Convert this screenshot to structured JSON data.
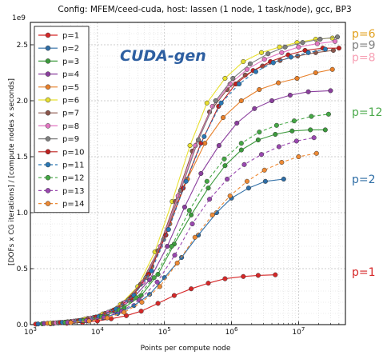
{
  "chart_data": {
    "type": "line",
    "title": "Config: MFEM/ceed-cuda, host: lassen (1 node, 1 task/node), gcc, BP3",
    "xlabel": "Points per compute node",
    "ylabel": "[DOFs x CG iterations] / [compute nodes x seconds]",
    "y_multiplier": "1e9",
    "xscale": "log",
    "xlim": [
      1000,
      50000000
    ],
    "ylim": [
      0,
      2.7
    ],
    "x_tick_labels": [
      "10^3",
      "10^4",
      "10^5",
      "10^6",
      "10^7"
    ],
    "x_ticks": [
      1000,
      10000,
      100000,
      1000000,
      10000000
    ],
    "y_ticks": [
      0.0,
      0.5,
      1.0,
      1.5,
      2.0,
      2.5
    ],
    "y_tick_labels": [
      "0.0",
      "0.5",
      "1.0",
      "1.5",
      "2.0",
      "2.5"
    ],
    "grid": true,
    "legend_position": "top-left",
    "annotation": "CUDA-gen",
    "annotation_color": "#2e5fa1",
    "series": [
      {
        "name": "p=1",
        "color": "#d62728",
        "dash": false,
        "x": [
          1200,
          2000,
          3500,
          6000,
          10000,
          16000,
          27000,
          45000,
          80000,
          140000,
          250000,
          450000,
          800000,
          1500000,
          2500000,
          4500000
        ],
        "y": [
          0.004,
          0.007,
          0.012,
          0.02,
          0.033,
          0.052,
          0.08,
          0.12,
          0.19,
          0.26,
          0.32,
          0.37,
          0.41,
          0.43,
          0.44,
          0.445
        ]
      },
      {
        "name": "p=2",
        "color": "#2f6ea6",
        "dash": false,
        "x": [
          1300,
          2200,
          4000,
          7000,
          12000,
          20000,
          35000,
          60000,
          100000,
          180000,
          320000,
          600000,
          1000000,
          1800000,
          3200000,
          6000000
        ],
        "y": [
          0.006,
          0.01,
          0.02,
          0.035,
          0.06,
          0.1,
          0.17,
          0.27,
          0.42,
          0.6,
          0.8,
          1.0,
          1.13,
          1.22,
          1.28,
          1.3
        ]
      },
      {
        "name": "p=3",
        "color": "#3c9a3c",
        "dash": false,
        "x": [
          1500,
          2600,
          4500,
          8000,
          14000,
          25000,
          45000,
          80000,
          140000,
          250000,
          450000,
          800000,
          1400000,
          2500000,
          4500000,
          8000000,
          15000000,
          25000000
        ],
        "y": [
          0.008,
          0.015,
          0.03,
          0.05,
          0.09,
          0.15,
          0.26,
          0.45,
          0.72,
          0.98,
          1.22,
          1.42,
          1.56,
          1.65,
          1.7,
          1.73,
          1.74,
          1.74
        ]
      },
      {
        "name": "p=4",
        "color": "#8b3f9e",
        "dash": false,
        "x": [
          1600,
          3000,
          5500,
          10000,
          18000,
          32000,
          60000,
          110000,
          200000,
          350000,
          650000,
          1200000,
          2200000,
          4000000,
          7500000,
          14000000,
          30000000
        ],
        "y": [
          0.01,
          0.018,
          0.035,
          0.065,
          0.12,
          0.22,
          0.4,
          0.7,
          1.05,
          1.35,
          1.6,
          1.8,
          1.93,
          2.0,
          2.05,
          2.08,
          2.09
        ]
      },
      {
        "name": "p=5",
        "color": "#e8802a",
        "dash": false,
        "x": [
          1800,
          3300,
          6000,
          11000,
          20000,
          36000,
          65000,
          120000,
          220000,
          400000,
          750000,
          1400000,
          2600000,
          5000000,
          9500000,
          18000000,
          32000000
        ],
        "y": [
          0.012,
          0.022,
          0.042,
          0.08,
          0.15,
          0.28,
          0.52,
          0.9,
          1.3,
          1.62,
          1.85,
          2.0,
          2.1,
          2.16,
          2.2,
          2.25,
          2.28
        ]
      },
      {
        "name": "p=6",
        "color": "#e8e030",
        "dash": false,
        "x": [
          2000,
          3600,
          6500,
          12000,
          22000,
          40000,
          72000,
          130000,
          240000,
          430000,
          800000,
          1500000,
          2800000,
          5200000,
          9500000,
          18000000,
          32000000
        ],
        "y": [
          0.014,
          0.026,
          0.05,
          0.095,
          0.18,
          0.34,
          0.65,
          1.1,
          1.6,
          1.98,
          2.2,
          2.35,
          2.43,
          2.48,
          2.52,
          2.55,
          2.56
        ]
      },
      {
        "name": "p=7",
        "color": "#8c564b",
        "dash": false,
        "x": [
          2200,
          4000,
          7200,
          13000,
          24000,
          44000,
          80000,
          145000,
          260000,
          470000,
          860000,
          1600000,
          2900000,
          5300000,
          9700000,
          18000000,
          33000000
        ],
        "y": [
          0.015,
          0.028,
          0.055,
          0.1,
          0.19,
          0.36,
          0.66,
          1.1,
          1.55,
          1.9,
          2.1,
          2.23,
          2.31,
          2.36,
          2.4,
          2.43,
          2.45
        ]
      },
      {
        "name": "p=8",
        "color": "#e377c2",
        "dash": false,
        "x": [
          2400,
          4400,
          8000,
          14500,
          26000,
          48000,
          87000,
          160000,
          290000,
          520000,
          950000,
          1700000,
          3100000,
          5600000,
          10000000,
          19000000,
          35000000
        ],
        "y": [
          0.016,
          0.03,
          0.058,
          0.11,
          0.2,
          0.38,
          0.7,
          1.15,
          1.6,
          1.95,
          2.15,
          2.28,
          2.37,
          2.43,
          2.48,
          2.51,
          2.53
        ]
      },
      {
        "name": "p=9",
        "color": "#7f7f7f",
        "dash": false,
        "x": [
          2600,
          4800,
          8800,
          16000,
          29000,
          53000,
          97000,
          175000,
          320000,
          580000,
          1050000,
          1900000,
          3500000,
          6300000,
          11500000,
          21000000,
          38000000
        ],
        "y": [
          0.018,
          0.033,
          0.064,
          0.12,
          0.22,
          0.42,
          0.76,
          1.2,
          1.65,
          2.0,
          2.2,
          2.33,
          2.42,
          2.48,
          2.52,
          2.55,
          2.57
        ]
      },
      {
        "name": "p=10",
        "color": "#c0201f",
        "dash": false,
        "x": [
          2800,
          5200,
          9500,
          17500,
          32000,
          58000,
          105000,
          190000,
          350000,
          640000,
          1150000,
          2100000,
          3800000,
          7000000,
          12500000,
          23000000,
          40000000
        ],
        "y": [
          0.019,
          0.035,
          0.068,
          0.13,
          0.24,
          0.45,
          0.8,
          1.22,
          1.62,
          1.95,
          2.15,
          2.27,
          2.35,
          2.41,
          2.45,
          2.47,
          2.47
        ]
      },
      {
        "name": "p=11",
        "color": "#2a78b5",
        "dash": true,
        "x": [
          3000,
          5600,
          10500,
          19000,
          35000,
          64000,
          115000,
          210000,
          390000,
          700000,
          1300000,
          2300000,
          4200000,
          7700000,
          14000000,
          25000000
        ],
        "y": [
          0.02,
          0.037,
          0.072,
          0.14,
          0.26,
          0.48,
          0.85,
          1.28,
          1.68,
          1.98,
          2.15,
          2.26,
          2.34,
          2.39,
          2.43,
          2.46
        ]
      },
      {
        "name": "p=12",
        "color": "#45a845",
        "dash": true,
        "x": [
          3300,
          6200,
          11500,
          21000,
          38000,
          70000,
          128000,
          235000,
          430000,
          780000,
          1400000,
          2600000,
          4700000,
          8600000,
          15500000,
          28000000
        ],
        "y": [
          0.02,
          0.036,
          0.07,
          0.13,
          0.24,
          0.42,
          0.7,
          1.02,
          1.28,
          1.48,
          1.62,
          1.72,
          1.78,
          1.82,
          1.86,
          1.88
        ]
      },
      {
        "name": "p=13",
        "color": "#9a48b0",
        "dash": true,
        "x": [
          3600,
          6800,
          12500,
          23000,
          42000,
          78000,
          142000,
          260000,
          470000,
          860000,
          1550000,
          2800000,
          5100000,
          9300000,
          17000000
        ],
        "y": [
          0.02,
          0.035,
          0.065,
          0.12,
          0.22,
          0.38,
          0.62,
          0.9,
          1.12,
          1.3,
          1.43,
          1.52,
          1.59,
          1.64,
          1.67
        ]
      },
      {
        "name": "p=14",
        "color": "#ee8a35",
        "dash": true,
        "x": [
          4000,
          7500,
          14000,
          25000,
          46000,
          85000,
          155000,
          285000,
          520000,
          950000,
          1700000,
          3100000,
          5600000,
          10000000,
          18500000
        ],
        "y": [
          0.018,
          0.032,
          0.06,
          0.11,
          0.2,
          0.34,
          0.55,
          0.78,
          0.98,
          1.15,
          1.28,
          1.38,
          1.45,
          1.5,
          1.53
        ]
      }
    ],
    "side_labels": [
      {
        "text": "p=6",
        "color": "#e1a01e",
        "y": 2.6
      },
      {
        "text": "p=9",
        "color": "#7f7f7f",
        "y": 2.5
      },
      {
        "text": "p=8",
        "color": "#f7a1b5",
        "y": 2.39
      },
      {
        "text": "p=12",
        "color": "#4caa4c",
        "y": 1.9
      },
      {
        "text": "p=2",
        "color": "#2f6ea6",
        "y": 1.3
      },
      {
        "text": "p=1",
        "color": "#d62728",
        "y": 0.47
      }
    ]
  }
}
